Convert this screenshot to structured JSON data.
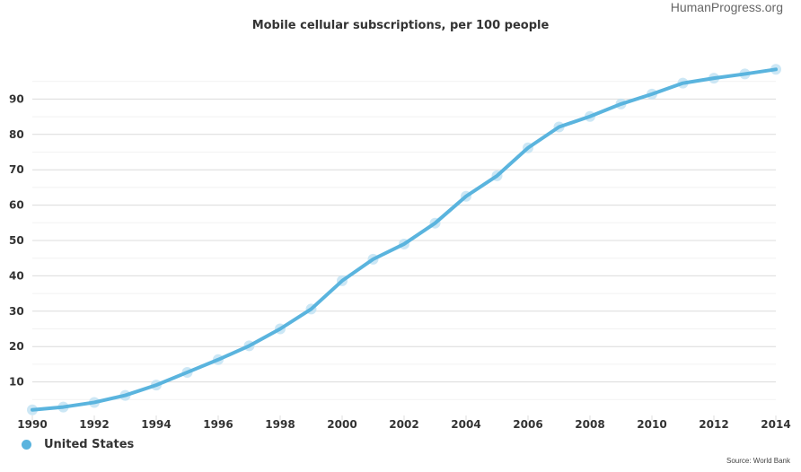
{
  "brand": "HumanProgress.org",
  "source": "Source: World Bank",
  "chart_data": {
    "type": "line",
    "title": "Mobile cellular subscriptions, per 100 people",
    "xlabel": "",
    "ylabel": "",
    "x": [
      1990,
      1991,
      1992,
      1993,
      1994,
      1995,
      1996,
      1997,
      1998,
      1999,
      2000,
      2001,
      2002,
      2003,
      2004,
      2005,
      2006,
      2007,
      2008,
      2009,
      2010,
      2011,
      2012,
      2013,
      2014
    ],
    "series": [
      {
        "name": "United States",
        "color": "#5ab4de",
        "values": [
          2.1,
          2.9,
          4.2,
          6.2,
          9.1,
          12.7,
          16.3,
          20.2,
          25.0,
          30.6,
          38.6,
          44.7,
          49.0,
          54.9,
          62.5,
          68.3,
          76.2,
          82.1,
          85.1,
          88.6,
          91.4,
          94.5,
          95.9,
          97.1,
          98.4
        ]
      }
    ],
    "xlim": [
      1990,
      2014
    ],
    "ylim": [
      0,
      100
    ],
    "xticks": [
      1990,
      1992,
      1994,
      1996,
      1998,
      2000,
      2002,
      2004,
      2006,
      2008,
      2010,
      2012,
      2014
    ],
    "yticks": [
      10,
      20,
      30,
      40,
      50,
      60,
      70,
      80,
      90
    ],
    "grid": true,
    "legend": "bottom-left"
  }
}
